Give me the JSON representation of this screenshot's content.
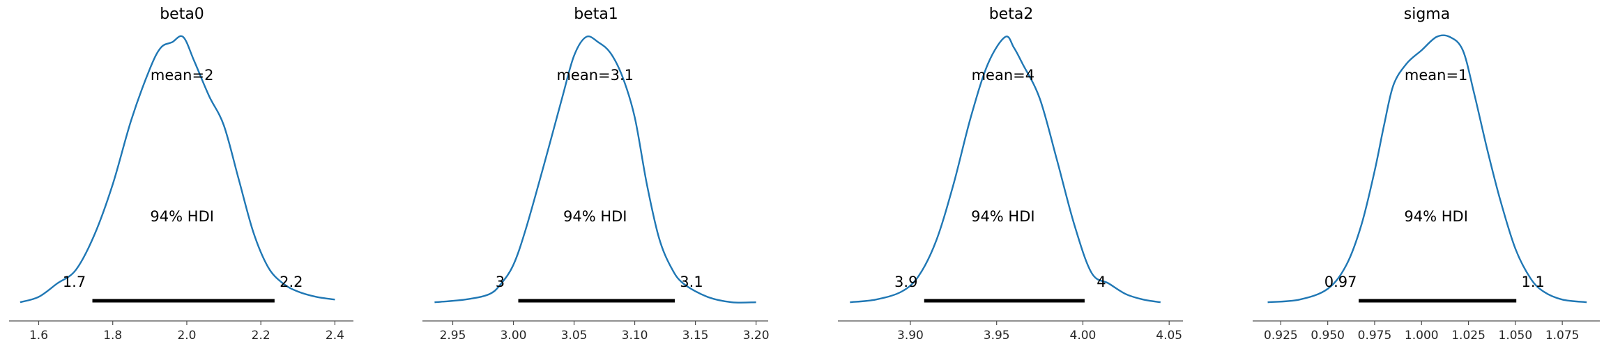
{
  "chart_data": [
    {
      "type": "area",
      "title": "beta0",
      "mean_label": "mean=2",
      "hdi_label": "94% HDI",
      "hdi": [
        1.745,
        2.237
      ],
      "hdi_low_label": "1.7",
      "hdi_high_label": "2.2",
      "xlim": [
        1.52,
        2.45
      ],
      "xticks": [
        1.6,
        1.8,
        2.0,
        2.2,
        2.4
      ],
      "xtick_labels": [
        "1.6",
        "1.8",
        "2.0",
        "2.2",
        "2.4"
      ],
      "ylim": [
        0,
        1.0
      ],
      "x": [
        1.55,
        1.6,
        1.65,
        1.7,
        1.75,
        1.8,
        1.85,
        1.9,
        1.93,
        1.96,
        1.99,
        2.02,
        2.06,
        2.1,
        2.14,
        2.18,
        2.22,
        2.26,
        2.3,
        2.35,
        2.4
      ],
      "y": [
        0.01,
        0.03,
        0.08,
        0.13,
        0.26,
        0.45,
        0.69,
        0.88,
        0.96,
        0.98,
        1.0,
        0.91,
        0.78,
        0.67,
        0.47,
        0.27,
        0.14,
        0.08,
        0.05,
        0.03,
        0.02
      ]
    },
    {
      "type": "area",
      "title": "beta1",
      "mean_label": "mean=3.1",
      "hdi_label": "94% HDI",
      "hdi": [
        3.004,
        3.133
      ],
      "hdi_low_label": "3",
      "hdi_high_label": "3.1",
      "xlim": [
        2.925,
        3.21
      ],
      "xticks": [
        2.95,
        3.0,
        3.05,
        3.1,
        3.15,
        3.2
      ],
      "xtick_labels": [
        "2.95",
        "3.00",
        "3.05",
        "3.10",
        "3.15",
        "3.20"
      ],
      "ylim": [
        0,
        1.0
      ],
      "x": [
        2.935,
        2.96,
        2.98,
        2.99,
        3.0,
        3.01,
        3.025,
        3.04,
        3.05,
        3.06,
        3.07,
        3.08,
        3.09,
        3.1,
        3.11,
        3.12,
        3.13,
        3.14,
        3.16,
        3.18,
        3.2
      ],
      "y": [
        0.01,
        0.02,
        0.04,
        0.08,
        0.15,
        0.28,
        0.52,
        0.77,
        0.93,
        1.0,
        0.98,
        0.94,
        0.85,
        0.7,
        0.45,
        0.25,
        0.14,
        0.08,
        0.03,
        0.01,
        0.01
      ]
    },
    {
      "type": "area",
      "title": "beta2",
      "mean_label": "mean=4",
      "hdi_label": "94% HDI",
      "hdi": [
        3.908,
        4.001
      ],
      "hdi_low_label": "3.9",
      "hdi_high_label": "4",
      "xlim": [
        3.858,
        4.058
      ],
      "xticks": [
        3.9,
        3.95,
        4.0,
        4.05
      ],
      "xtick_labels": [
        "3.90",
        "3.95",
        "4.00",
        "4.05"
      ],
      "ylim": [
        0,
        1.0
      ],
      "x": [
        3.865,
        3.88,
        3.895,
        3.905,
        3.915,
        3.925,
        3.935,
        3.945,
        3.955,
        3.96,
        3.965,
        3.975,
        3.985,
        3.995,
        4.005,
        4.015,
        4.025,
        4.035,
        4.045
      ],
      "y": [
        0.01,
        0.02,
        0.05,
        0.11,
        0.24,
        0.45,
        0.7,
        0.9,
        1.0,
        0.96,
        0.9,
        0.77,
        0.54,
        0.3,
        0.12,
        0.08,
        0.04,
        0.02,
        0.01
      ]
    },
    {
      "type": "area",
      "title": "sigma",
      "mean_label": "mean=1",
      "hdi_label": "94% HDI",
      "hdi": [
        0.9665,
        1.0505
      ],
      "hdi_low_label": "0.97",
      "hdi_high_label": "1.1",
      "xlim": [
        0.91,
        1.095
      ],
      "xticks": [
        0.925,
        0.95,
        0.975,
        1.0,
        1.025,
        1.05,
        1.075
      ],
      "xtick_labels": [
        "0.925",
        "0.950",
        "0.975",
        "1.000",
        "1.025",
        "1.050",
        "1.075"
      ],
      "ylim": [
        0,
        1.0
      ],
      "x": [
        0.918,
        0.935,
        0.95,
        0.96,
        0.968,
        0.975,
        0.98,
        0.985,
        0.992,
        1.0,
        1.008,
        1.015,
        1.022,
        1.028,
        1.035,
        1.042,
        1.05,
        1.058,
        1.065,
        1.075,
        1.088
      ],
      "y": [
        0.01,
        0.02,
        0.06,
        0.15,
        0.3,
        0.5,
        0.67,
        0.82,
        0.9,
        0.95,
        1.0,
        1.0,
        0.95,
        0.79,
        0.58,
        0.39,
        0.21,
        0.1,
        0.05,
        0.02,
        0.01
      ]
    }
  ],
  "colors": {
    "kde_line": "#1f77b4",
    "hdi_bar": "#000000",
    "axis": "#4d4d4d"
  }
}
